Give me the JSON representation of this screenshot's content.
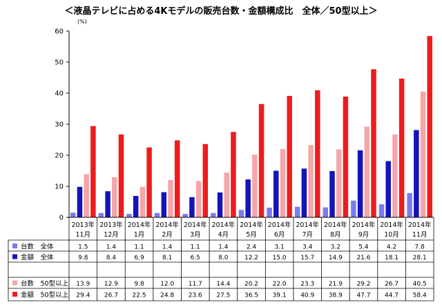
{
  "chart_data": {
    "type": "bar",
    "title": "＜液晶テレビに占める4Kモデルの販売台数・金額構成比　全体／50型以上＞",
    "ylabel": "(%)",
    "ylim": [
      0,
      60
    ],
    "yticks": [
      0,
      10,
      20,
      30,
      40,
      50,
      60
    ],
    "grid": false,
    "legend": "data-table",
    "categories": [
      [
        "2013年",
        "11月"
      ],
      [
        "2013年",
        "12月"
      ],
      [
        "2014年",
        "1月"
      ],
      [
        "2014年",
        "2月"
      ],
      [
        "2014年",
        "3月"
      ],
      [
        "2014年",
        "4月"
      ],
      [
        "2014年",
        "5月"
      ],
      [
        "2014年",
        "6月"
      ],
      [
        "2014年",
        "7月"
      ],
      [
        "2014年",
        "8月"
      ],
      [
        "2014年",
        "9月"
      ],
      [
        "2014年",
        "10月"
      ],
      [
        "2014年",
        "11月"
      ]
    ],
    "series": [
      {
        "name": "台数　全体",
        "color": "#7b7bef",
        "values": [
          1.5,
          1.4,
          1.1,
          1.4,
          1.1,
          1.4,
          2.4,
          3.1,
          3.4,
          3.2,
          5.4,
          4.2,
          7.8
        ],
        "labels": [
          "1.5",
          "1.4",
          "1.1",
          "1.4",
          "1.1",
          "1.4",
          "2.4",
          "3.1",
          "3.4",
          "3.2",
          "5.4",
          "4.2",
          "7.8"
        ]
      },
      {
        "name": "金額　全体",
        "color": "#1414b8",
        "values": [
          9.8,
          8.4,
          6.9,
          8.1,
          6.5,
          8.0,
          12.2,
          15.0,
          15.7,
          14.9,
          21.6,
          18.1,
          28.1
        ],
        "labels": [
          "9.8",
          "8.4",
          "6.9",
          "8.1",
          "6.5",
          "8.0",
          "12.2",
          "15.0",
          "15.7",
          "14.9",
          "21.6",
          "18.1",
          "28.1"
        ]
      },
      {
        "name": "台数　50型以上",
        "color": "#f4a6a8",
        "values": [
          13.9,
          12.9,
          9.8,
          12.0,
          11.7,
          14.4,
          20.2,
          22.0,
          23.3,
          21.9,
          29.2,
          26.7,
          40.5
        ],
        "labels": [
          "13.9",
          "12.9",
          "9.8",
          "12.0",
          "11.7",
          "14.4",
          "20.2",
          "22.0",
          "23.3",
          "21.9",
          "29.2",
          "26.7",
          "40.5"
        ]
      },
      {
        "name": "金額　50型以上",
        "color": "#ee1c1c",
        "values": [
          29.4,
          26.7,
          22.5,
          24.8,
          23.6,
          27.5,
          36.5,
          39.1,
          40.9,
          38.9,
          47.7,
          44.7,
          58.4
        ],
        "labels": [
          "29.4",
          "26.7",
          "22.5",
          "24.8",
          "23.6",
          "27.5",
          "36.5",
          "39.1",
          "40.9",
          "38.9",
          "47.7",
          "44.7",
          "58.4"
        ]
      }
    ]
  }
}
